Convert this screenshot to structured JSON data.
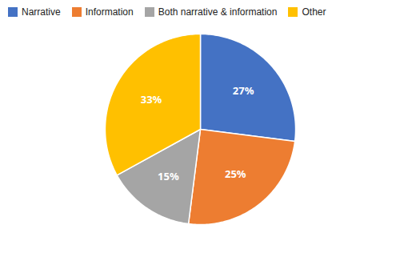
{
  "chart_data": {
    "type": "pie",
    "categories": [
      "Narrative",
      "Information",
      "Both narrative & information",
      "Other"
    ],
    "values": [
      27,
      25,
      15,
      33
    ],
    "value_labels": [
      "27%",
      "25%",
      "15%",
      "33%"
    ],
    "colors": [
      "#4472C4",
      "#ED7D31",
      "#A5A5A5",
      "#FFC000"
    ],
    "data_labels": true,
    "legend": "top"
  }
}
